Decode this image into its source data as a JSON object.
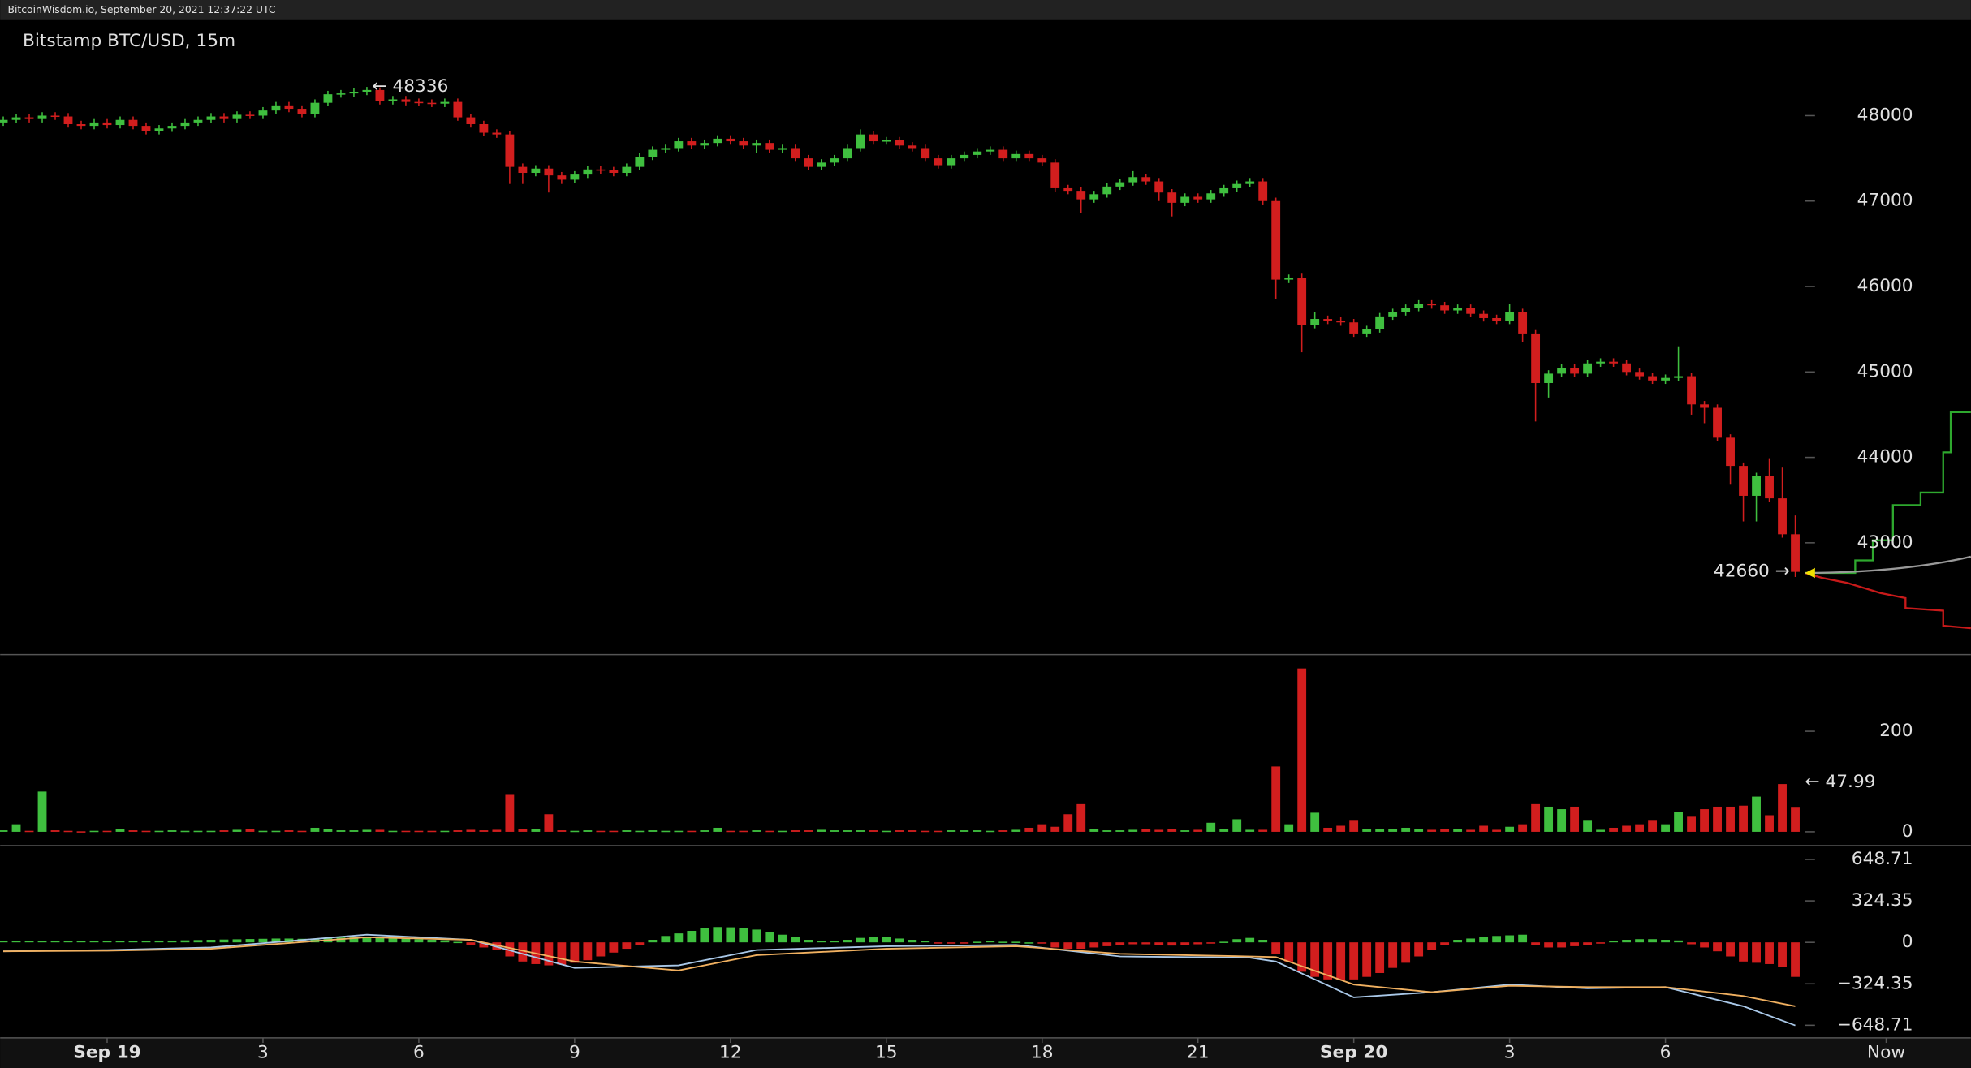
{
  "header": {
    "text": "BitcoinWisdom.io, September 20, 2021 12:37:22 UTC"
  },
  "chart_data": {
    "type": "candlestick",
    "title": "Bitstamp BTC/USD, 15m",
    "up_color": "#3fbf3f",
    "down_color": "#d21e1e",
    "xlim": [
      -2.06,
      35.88
    ],
    "xticks": [
      {
        "value": 0,
        "label": "Sep 19"
      },
      3,
      6,
      9,
      12,
      15,
      18,
      21,
      {
        "value": 24,
        "label": "Sep 20"
      },
      {
        "value": 27,
        "label": "3"
      },
      {
        "value": 30,
        "label": "6"
      },
      {
        "value": 34.25,
        "label": "Now"
      }
    ],
    "ylim": [
      41706,
      49118
    ],
    "yticks": [
      43000,
      44000,
      45000,
      46000,
      47000,
      48000
    ],
    "x": [
      -2,
      -1.75,
      -1.5,
      -1.25,
      -1,
      -0.75,
      -0.5,
      -0.25,
      0,
      0.25,
      0.5,
      0.75,
      1,
      1.25,
      1.5,
      1.75,
      2,
      2.25,
      2.5,
      2.75,
      3,
      3.25,
      3.5,
      3.75,
      4,
      4.25,
      4.5,
      4.75,
      5,
      5.25,
      5.5,
      5.75,
      6,
      6.25,
      6.5,
      6.75,
      7,
      7.25,
      7.5,
      7.75,
      8,
      8.25,
      8.5,
      8.75,
      9,
      9.25,
      9.5,
      9.75,
      10,
      10.25,
      10.5,
      10.75,
      11,
      11.25,
      11.5,
      11.75,
      12,
      12.25,
      12.5,
      12.75,
      13,
      13.25,
      13.5,
      13.75,
      14,
      14.25,
      14.5,
      14.75,
      15,
      15.25,
      15.5,
      15.75,
      16,
      16.25,
      16.5,
      16.75,
      17,
      17.25,
      17.5,
      17.75,
      18,
      18.25,
      18.5,
      18.75,
      19,
      19.25,
      19.5,
      19.75,
      20,
      20.25,
      20.5,
      20.75,
      21,
      21.25,
      21.5,
      21.75,
      22,
      22.25,
      22.5,
      22.75,
      23,
      23.25,
      23.5,
      23.75,
      24,
      24.25,
      24.5,
      24.75,
      25,
      25.25,
      25.5,
      25.75,
      26,
      26.25,
      26.5,
      26.75,
      27,
      27.25,
      27.5,
      27.75,
      28,
      28.25,
      28.5,
      28.75,
      29,
      29.25,
      29.5,
      29.75,
      30,
      30.25,
      30.5,
      30.75,
      31,
      31.25,
      31.5,
      31.75,
      32,
      32.25,
      32.5
    ],
    "open": [
      47920,
      47950,
      47980,
      47960,
      48000,
      47990,
      47900,
      47880,
      47920,
      47890,
      47950,
      47880,
      47820,
      47850,
      47880,
      47920,
      47950,
      47990,
      47960,
      48010,
      48000,
      48060,
      48120,
      48080,
      48020,
      48150,
      48250,
      48260,
      48280,
      48300,
      48170,
      48190,
      48160,
      48150,
      48140,
      48160,
      47980,
      47900,
      47800,
      47780,
      47400,
      47330,
      47380,
      47300,
      47250,
      47310,
      47370,
      47360,
      47330,
      47400,
      47520,
      47600,
      47620,
      47700,
      47650,
      47680,
      47730,
      47700,
      47650,
      47680,
      47600,
      47620,
      47500,
      47400,
      47450,
      47500,
      47620,
      47780,
      47700,
      47710,
      47650,
      47620,
      47500,
      47420,
      47500,
      47540,
      47580,
      47600,
      47500,
      47550,
      47500,
      47450,
      47150,
      47120,
      47020,
      47080,
      47170,
      47220,
      47280,
      47230,
      47100,
      46980,
      47050,
      47020,
      47090,
      47150,
      47200,
      47230,
      47000,
      46080,
      46100,
      45550,
      45620,
      45600,
      45580,
      45450,
      45500,
      45650,
      45700,
      45750,
      45800,
      45780,
      45720,
      45750,
      45680,
      45630,
      45600,
      45700,
      45450,
      44870,
      44980,
      45050,
      44980,
      45100,
      45120,
      45100,
      45000,
      44950,
      44900,
      44930,
      44950,
      44620,
      44580,
      44230,
      43900,
      43550,
      43780,
      43520,
      43100
    ],
    "high": [
      47990,
      48020,
      48020,
      48040,
      48040,
      48030,
      47940,
      47960,
      47960,
      47990,
      47990,
      47920,
      47890,
      47920,
      47960,
      47990,
      48030,
      48030,
      48050,
      48050,
      48100,
      48160,
      48160,
      48120,
      48190,
      48290,
      48300,
      48320,
      48336,
      48330,
      48230,
      48230,
      48200,
      48190,
      48200,
      48200,
      48020,
      47940,
      47840,
      47820,
      47440,
      47420,
      47420,
      47340,
      47350,
      47410,
      47410,
      47400,
      47440,
      47560,
      47640,
      47660,
      47740,
      47740,
      47720,
      47770,
      47770,
      47740,
      47720,
      47720,
      47660,
      47660,
      47540,
      47490,
      47540,
      47660,
      47840,
      47820,
      47750,
      47750,
      47690,
      47660,
      47540,
      47540,
      47580,
      47620,
      47640,
      47640,
      47590,
      47590,
      47540,
      47490,
      47190,
      47160,
      47120,
      47210,
      47260,
      47350,
      47320,
      47270,
      47140,
      47090,
      47090,
      47130,
      47190,
      47240,
      47270,
      47270,
      47040,
      46140,
      46150,
      45700,
      45660,
      45640,
      45620,
      45540,
      45690,
      45740,
      45790,
      45840,
      45840,
      45820,
      45790,
      45790,
      45720,
      45670,
      45800,
      45740,
      45490,
      45020,
      45090,
      45090,
      45140,
      45160,
      45160,
      45140,
      45040,
      44990,
      44970,
      45300,
      44990,
      44660,
      44620,
      44270,
      43940,
      43820,
      43990,
      43880,
      43320
    ],
    "low": [
      47880,
      47910,
      47920,
      47920,
      47950,
      47860,
      47840,
      47840,
      47850,
      47850,
      47840,
      47780,
      47780,
      47810,
      47840,
      47880,
      47910,
      47920,
      47920,
      47960,
      47960,
      48020,
      48040,
      47980,
      47980,
      48110,
      48210,
      48220,
      48240,
      48130,
      48130,
      48120,
      48110,
      48100,
      48100,
      47940,
      47860,
      47760,
      47740,
      47200,
      47200,
      47290,
      47100,
      47200,
      47210,
      47270,
      47320,
      47290,
      47290,
      47360,
      47480,
      47560,
      47580,
      47610,
      47610,
      47640,
      47660,
      47610,
      47560,
      47560,
      47560,
      47460,
      47360,
      47360,
      47410,
      47460,
      47580,
      47660,
      47660,
      47610,
      47580,
      47460,
      47380,
      47380,
      47460,
      47500,
      47540,
      47460,
      47460,
      47460,
      47410,
      47110,
      47080,
      46860,
      46980,
      47040,
      47130,
      47180,
      47190,
      47000,
      46820,
      46940,
      46980,
      46980,
      47050,
      47110,
      47160,
      46960,
      45850,
      46040,
      45230,
      45510,
      45560,
      45540,
      45410,
      45410,
      45460,
      45610,
      45660,
      45710,
      45740,
      45680,
      45680,
      45640,
      45590,
      45560,
      45560,
      45350,
      44420,
      44700,
      44940,
      44940,
      44940,
      45060,
      45060,
      44960,
      44910,
      44860,
      44860,
      44890,
      44500,
      44400,
      44190,
      43680,
      43250,
      43250,
      43480,
      43060,
      42600
    ],
    "close": [
      47950,
      47980,
      47960,
      48000,
      47990,
      47900,
      47880,
      47920,
      47890,
      47950,
      47880,
      47820,
      47850,
      47880,
      47920,
      47950,
      47990,
      47960,
      48010,
      48000,
      48060,
      48120,
      48080,
      48020,
      48150,
      48250,
      48260,
      48280,
      48300,
      48170,
      48190,
      48160,
      48150,
      48140,
      48160,
      47980,
      47900,
      47800,
      47780,
      47400,
      47330,
      47380,
      47300,
      47250,
      47310,
      47370,
      47360,
      47330,
      47400,
      47520,
      47600,
      47620,
      47700,
      47650,
      47680,
      47730,
      47700,
      47650,
      47680,
      47600,
      47620,
      47500,
      47400,
      47450,
      47500,
      47620,
      47780,
      47700,
      47710,
      47650,
      47620,
      47500,
      47420,
      47500,
      47540,
      47580,
      47600,
      47500,
      47550,
      47500,
      47450,
      47150,
      47120,
      47020,
      47080,
      47170,
      47220,
      47280,
      47230,
      47100,
      46980,
      47050,
      47020,
      47090,
      47150,
      47200,
      47230,
      47000,
      46080,
      46100,
      45550,
      45620,
      45600,
      45580,
      45450,
      45500,
      45650,
      45700,
      45750,
      45800,
      45780,
      45720,
      45750,
      45680,
      45630,
      45600,
      45700,
      45450,
      44870,
      44980,
      45050,
      44980,
      45100,
      45120,
      45100,
      45000,
      44950,
      44900,
      44930,
      44950,
      44620,
      44580,
      44230,
      43900,
      43550,
      43780,
      43520,
      43100,
      42660
    ],
    "annotations": [
      {
        "text": "← 48336",
        "value": 48336
      },
      {
        "text": "42660 →",
        "value": 42660
      }
    ],
    "volume": {
      "ylim": [
        -25,
        350
      ],
      "yticks": [
        0,
        200
      ],
      "values": [
        3,
        15,
        2,
        80,
        3,
        2,
        1,
        2,
        2,
        5,
        3,
        2,
        2,
        3,
        2,
        2,
        2,
        3,
        4,
        5,
        2,
        2,
        3,
        2,
        8,
        5,
        3,
        3,
        4,
        4,
        2,
        2,
        2,
        2,
        2,
        3,
        4,
        3,
        4,
        75,
        6,
        5,
        35,
        3,
        2,
        3,
        2,
        2,
        3,
        2,
        3,
        2,
        2,
        2,
        3,
        8,
        2,
        2,
        3,
        2,
        2,
        3,
        3,
        4,
        3,
        3,
        3,
        3,
        2,
        3,
        3,
        2,
        2,
        3,
        3,
        3,
        2,
        3,
        4,
        8,
        15,
        10,
        35,
        55,
        5,
        3,
        3,
        4,
        5,
        4,
        6,
        3,
        4,
        18,
        6,
        25,
        4,
        4,
        130,
        15,
        325,
        38,
        8,
        12,
        22,
        6,
        5,
        5,
        8,
        6,
        4,
        5,
        6,
        4,
        12,
        4,
        10,
        15,
        55,
        50,
        45,
        50,
        22,
        4,
        8,
        12,
        15,
        22,
        15,
        40,
        30,
        45,
        50,
        50,
        52,
        70,
        33,
        95,
        47.99
      ],
      "annotation": {
        "text": "← 47.99",
        "value": 47.99,
        "color": "#f0e000"
      }
    },
    "macd": {
      "ylim": [
        -747,
        747
      ],
      "yticks": [
        648.71,
        324.35,
        0,
        {
          "value": -324.35,
          "label": "−324.35"
        },
        {
          "value": -648.71,
          "label": "−648.71"
        }
      ],
      "histogram": [
        10,
        12,
        12,
        12,
        12,
        10,
        10,
        10,
        10,
        10,
        12,
        12,
        14,
        14,
        16,
        18,
        20,
        22,
        24,
        26,
        28,
        30,
        30,
        28,
        30,
        34,
        38,
        40,
        42,
        36,
        32,
        28,
        24,
        20,
        16,
        4,
        -20,
        -40,
        -60,
        -110,
        -150,
        -170,
        -180,
        -175,
        -160,
        -140,
        -110,
        -80,
        -50,
        -20,
        20,
        50,
        70,
        90,
        110,
        120,
        118,
        110,
        100,
        80,
        60,
        40,
        20,
        10,
        10,
        20,
        35,
        40,
        40,
        30,
        20,
        10,
        -5,
        -10,
        -5,
        5,
        10,
        5,
        5,
        0,
        -10,
        -40,
        -50,
        -50,
        -40,
        -30,
        -20,
        -15,
        -15,
        -20,
        -25,
        -20,
        -15,
        -10,
        5,
        25,
        35,
        20,
        -90,
        -150,
        -230,
        -270,
        -290,
        -295,
        -290,
        -270,
        -240,
        -200,
        -160,
        -110,
        -60,
        -20,
        20,
        30,
        40,
        50,
        55,
        60,
        -20,
        -40,
        -40,
        -30,
        -20,
        -10,
        10,
        20,
        25,
        25,
        20,
        15,
        -15,
        -40,
        -70,
        -110,
        -150,
        -160,
        -170,
        -190,
        -270
      ],
      "lines": [
        {
          "color": "#a9c8e8",
          "x": [
            -2,
            0,
            2,
            5,
            7,
            9,
            11,
            12.5,
            15,
            17.5,
            19.5,
            22,
            22.5,
            24,
            25.5,
            27,
            28.5,
            30,
            31.5,
            32.5
          ],
          "values": [
            -70,
            -60,
            -40,
            60,
            20,
            -200,
            -180,
            -60,
            -30,
            -20,
            -110,
            -120,
            -150,
            -430,
            -390,
            -330,
            -360,
            -350,
            -500,
            -650
          ]
        },
        {
          "color": "#f0b060",
          "x": [
            -2,
            0,
            2,
            5,
            7,
            9,
            11,
            12.5,
            15,
            17.5,
            19.5,
            22,
            22.5,
            24,
            25.5,
            27,
            28.5,
            30,
            31.5,
            32.5
          ],
          "values": [
            -70,
            -65,
            -50,
            40,
            20,
            -150,
            -220,
            -100,
            -50,
            -30,
            -90,
            -110,
            -115,
            -330,
            -390,
            -340,
            -350,
            -350,
            -420,
            -500
          ]
        }
      ]
    }
  }
}
